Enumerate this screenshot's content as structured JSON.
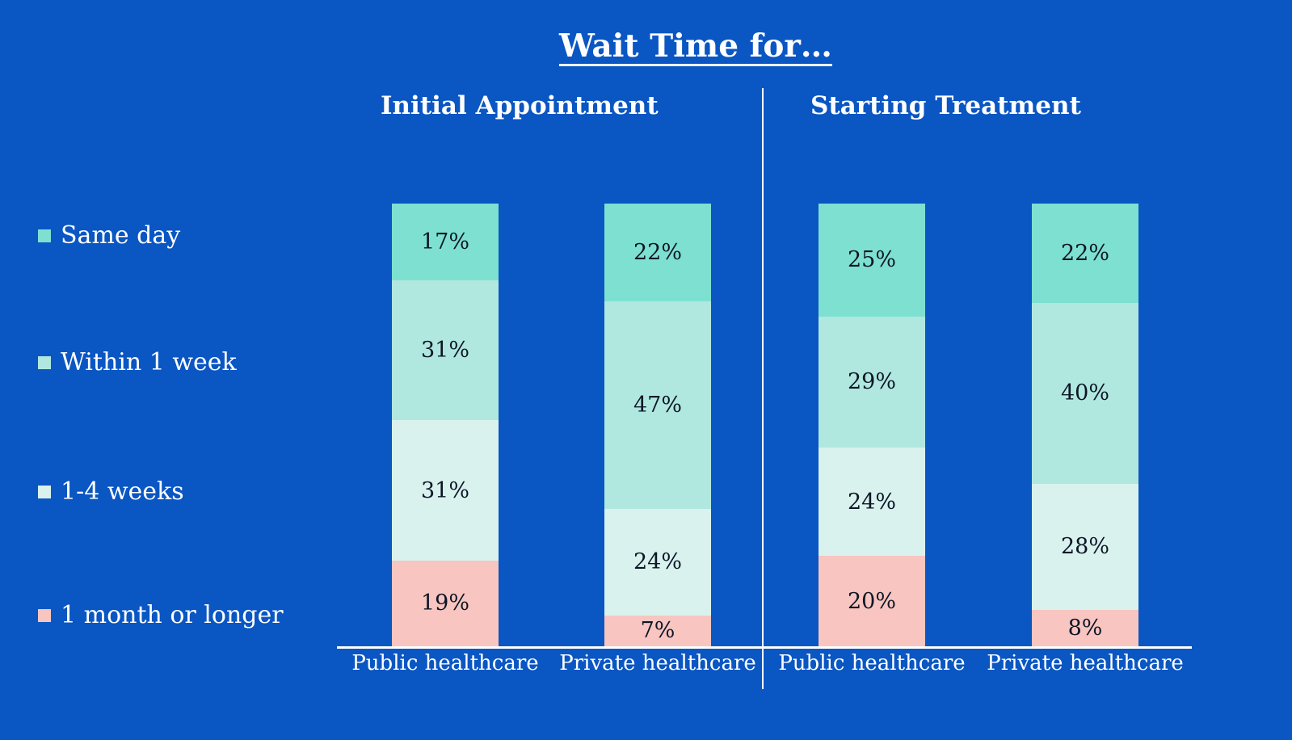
{
  "title": "Wait Time for…",
  "colors": {
    "background": "#0a56c3",
    "axis_line": "#ffffff",
    "divider": "#ffffff",
    "heading_text": "#ffffff",
    "value_text": "#0d1626"
  },
  "legend": [
    {
      "label": "Same day",
      "color": "#7de0d1"
    },
    {
      "label": "Within 1 week",
      "color": "#b0e8e0"
    },
    {
      "label": "1-4 weeks",
      "color": "#d9f2ee"
    },
    {
      "label": "1 month or longer",
      "color": "#f8c5c0"
    }
  ],
  "chart_data": {
    "type": "bar",
    "subtype": "100pct-stacked-column",
    "title": "Wait Time for…",
    "unit": "%",
    "legend_position": "left",
    "grid": false,
    "stack_order_top_to_bottom": [
      "Same day",
      "Within 1 week",
      "1-4 weeks",
      "1 month or longer"
    ],
    "panels": [
      {
        "header": "Initial Appointment",
        "bars": [
          {
            "category": "Public healthcare",
            "segments": [
              {
                "name": "Same day",
                "value": 17
              },
              {
                "name": "Within 1 week",
                "value": 31
              },
              {
                "name": "1-4 weeks",
                "value": 31
              },
              {
                "name": "1 month or longer",
                "value": 19
              }
            ]
          },
          {
            "category": "Private healthcare",
            "segments": [
              {
                "name": "Same day",
                "value": 22
              },
              {
                "name": "Within 1 week",
                "value": 47
              },
              {
                "name": "1-4 weeks",
                "value": 24
              },
              {
                "name": "1 month or longer",
                "value": 7
              }
            ]
          }
        ]
      },
      {
        "header": "Starting Treatment",
        "bars": [
          {
            "category": "Public healthcare",
            "segments": [
              {
                "name": "Same day",
                "value": 25
              },
              {
                "name": "Within 1 week",
                "value": 29
              },
              {
                "name": "1-4 weeks",
                "value": 24
              },
              {
                "name": "1 month or longer",
                "value": 20
              }
            ]
          },
          {
            "category": "Private healthcare",
            "segments": [
              {
                "name": "Same day",
                "value": 22
              },
              {
                "name": "Within 1 week",
                "value": 40
              },
              {
                "name": "1-4 weeks",
                "value": 28
              },
              {
                "name": "1 month or longer",
                "value": 8
              }
            ]
          }
        ]
      }
    ]
  }
}
